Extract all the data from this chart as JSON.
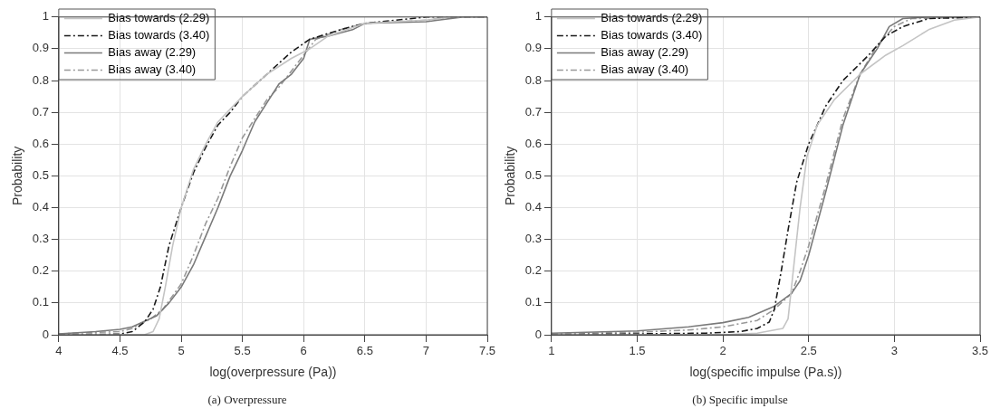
{
  "chart_data": [
    {
      "type": "line",
      "title": "(a) Overpressure",
      "xlabel": "log(overpressure (Pa))",
      "ylabel": "Probability",
      "xlim": [
        4,
        7.5
      ],
      "xticks": [
        4,
        4.5,
        5,
        5.5,
        6,
        6.5,
        7,
        7.5
      ],
      "ylim": [
        0,
        1
      ],
      "yticks": [
        0,
        0.1,
        0.2,
        0.3,
        0.4,
        0.5,
        0.6,
        0.7,
        0.8,
        0.9,
        1
      ],
      "grid": true,
      "legend": "top left",
      "marker": "none",
      "series": [
        {
          "name": "Bias towards (2.29)",
          "color": "#c4c4c4",
          "line_style": "solid",
          "x": [
            4,
            4.7,
            4.77,
            4.82,
            4.87,
            4.93,
            5,
            5.1,
            5.2,
            5.3,
            5.5,
            5.7,
            5.9,
            6.05,
            6.2,
            6.5,
            7,
            7.2,
            7.5
          ],
          "values": [
            0,
            0,
            0.01,
            0.05,
            0.15,
            0.28,
            0.4,
            0.52,
            0.6,
            0.67,
            0.75,
            0.82,
            0.87,
            0.9,
            0.94,
            0.98,
            0.99,
            1,
            1
          ]
        },
        {
          "name": "Bias towards (3.40)",
          "color": "#1a1a1a",
          "line_style": "dashed",
          "x": [
            4,
            4.5,
            4.6,
            4.7,
            4.77,
            4.83,
            4.9,
            5,
            5.1,
            5.2,
            5.3,
            5.4,
            5.5,
            5.7,
            5.9,
            6.05,
            6.3,
            6.5,
            7,
            7.3,
            7.5
          ],
          "values": [
            0,
            0.002,
            0.01,
            0.04,
            0.08,
            0.15,
            0.28,
            0.4,
            0.51,
            0.59,
            0.66,
            0.7,
            0.75,
            0.82,
            0.89,
            0.93,
            0.96,
            0.98,
            1,
            1,
            1
          ]
        },
        {
          "name": "Bias away (2.29)",
          "color": "#7a7a7a",
          "line_style": "solid",
          "x": [
            4,
            4.3,
            4.5,
            4.6,
            4.8,
            4.9,
            5,
            5.1,
            5.2,
            5.3,
            5.4,
            5.5,
            5.6,
            5.7,
            5.8,
            5.9,
            6,
            6.05,
            6.2,
            6.4,
            6.5,
            7,
            7.1,
            7.3,
            7.5
          ],
          "values": [
            0.003,
            0.01,
            0.017,
            0.025,
            0.06,
            0.1,
            0.15,
            0.22,
            0.31,
            0.4,
            0.5,
            0.58,
            0.67,
            0.73,
            0.79,
            0.82,
            0.87,
            0.93,
            0.94,
            0.96,
            0.98,
            0.985,
            0.99,
            1,
            1
          ]
        },
        {
          "name": "Bias away (3.40)",
          "color": "#999999",
          "line_style": "dashed",
          "x": [
            4,
            4.5,
            4.6,
            4.75,
            4.85,
            5,
            5.1,
            5.2,
            5.3,
            5.4,
            5.5,
            5.6,
            5.7,
            5.8,
            5.9,
            6,
            6.1,
            6.3,
            6.5,
            7,
            7.2,
            7.5
          ],
          "values": [
            0.003,
            0.01,
            0.02,
            0.05,
            0.08,
            0.16,
            0.25,
            0.35,
            0.43,
            0.53,
            0.62,
            0.68,
            0.74,
            0.78,
            0.83,
            0.88,
            0.93,
            0.96,
            0.98,
            0.99,
            1,
            1
          ]
        }
      ]
    },
    {
      "type": "line",
      "title": "(b) Specific impulse",
      "xlabel": "log(specific impulse (Pa.s))",
      "ylabel": "Probability",
      "xlim": [
        1,
        3.5
      ],
      "xticks": [
        1,
        1.5,
        2,
        2.5,
        3,
        3.5
      ],
      "ylim": [
        0,
        1
      ],
      "yticks": [
        0,
        0.1,
        0.2,
        0.3,
        0.4,
        0.5,
        0.6,
        0.7,
        0.8,
        0.9,
        1
      ],
      "grid": true,
      "legend": "top left",
      "marker": "none",
      "series": [
        {
          "name": "Bias towards (2.29)",
          "color": "#c4c4c4",
          "line_style": "solid",
          "x": [
            1,
            2,
            2.2,
            2.35,
            2.38,
            2.41,
            2.45,
            2.49,
            2.55,
            2.65,
            2.8,
            2.95,
            3.05,
            3.2,
            3.35,
            3.5
          ],
          "values": [
            0,
            0,
            0.005,
            0.02,
            0.05,
            0.2,
            0.4,
            0.56,
            0.66,
            0.74,
            0.82,
            0.88,
            0.91,
            0.96,
            0.99,
            1
          ]
        },
        {
          "name": "Bias towards (3.40)",
          "color": "#1a1a1a",
          "line_style": "dashed",
          "x": [
            1,
            1.9,
            2.1,
            2.2,
            2.27,
            2.3,
            2.34,
            2.38,
            2.43,
            2.5,
            2.6,
            2.7,
            2.85,
            2.95,
            3.05,
            3.2,
            3.5
          ],
          "values": [
            0,
            0.005,
            0.01,
            0.02,
            0.04,
            0.08,
            0.2,
            0.33,
            0.48,
            0.6,
            0.72,
            0.8,
            0.88,
            0.94,
            0.97,
            0.995,
            1
          ]
        },
        {
          "name": "Bias away (2.29)",
          "color": "#7a7a7a",
          "line_style": "solid",
          "x": [
            1,
            1.5,
            1.8,
            2,
            2.15,
            2.3,
            2.4,
            2.45,
            2.5,
            2.6,
            2.7,
            2.8,
            2.85,
            2.9,
            2.97,
            3.05,
            3.2,
            3.5
          ],
          "values": [
            0.005,
            0.012,
            0.025,
            0.038,
            0.055,
            0.09,
            0.13,
            0.17,
            0.25,
            0.45,
            0.66,
            0.82,
            0.86,
            0.9,
            0.97,
            0.995,
            1,
            1
          ]
        },
        {
          "name": "Bias away (3.40)",
          "color": "#999999",
          "line_style": "dashed",
          "x": [
            1,
            1.5,
            1.8,
            2,
            2.2,
            2.3,
            2.4,
            2.45,
            2.5,
            2.6,
            2.7,
            2.8,
            2.9,
            3,
            3.1,
            3.5
          ],
          "values": [
            0.003,
            0.008,
            0.015,
            0.025,
            0.045,
            0.08,
            0.13,
            0.2,
            0.28,
            0.47,
            0.68,
            0.82,
            0.91,
            0.97,
            0.995,
            1
          ]
        }
      ]
    }
  ]
}
